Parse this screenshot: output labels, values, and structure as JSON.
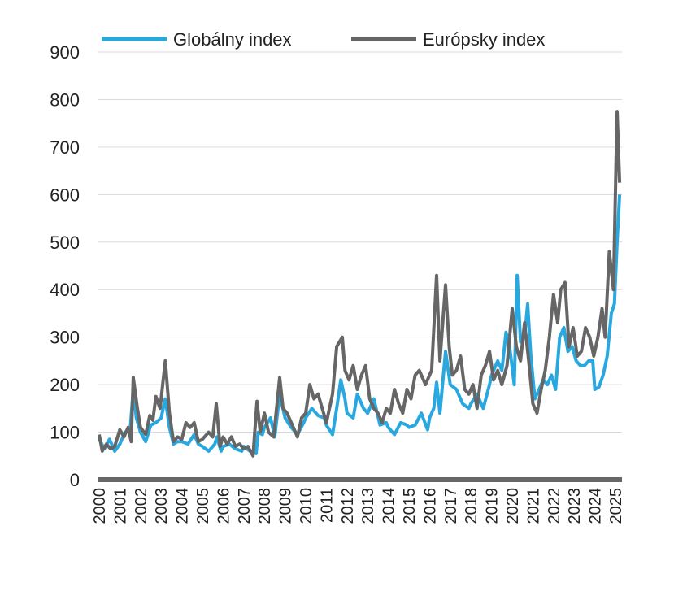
{
  "chart_data": {
    "type": "line",
    "title": "",
    "xlabel": "",
    "ylabel": "",
    "ylim": [
      0,
      900
    ],
    "yticks": [
      0,
      100,
      200,
      300,
      400,
      500,
      600,
      700,
      800,
      900
    ],
    "xlim": [
      2000,
      2025.25
    ],
    "xticks": [
      "2000",
      "2001",
      "2002",
      "2003",
      "2004",
      "2005",
      "2006",
      "2007",
      "2008",
      "2009",
      "2010",
      "2011",
      "2012",
      "2013",
      "2014",
      "2015",
      "2016",
      "2017",
      "2018",
      "2019",
      "2020",
      "2021",
      "2022",
      "2023",
      "2024",
      "2025"
    ],
    "grid": true,
    "legend": "top",
    "series": [
      {
        "name": "Globálny index",
        "color": "#29a8e0",
        "points": [
          [
            2000,
            85
          ],
          [
            2000.25,
            65
          ],
          [
            2000.5,
            85
          ],
          [
            2000.75,
            60
          ],
          [
            2001,
            75
          ],
          [
            2001.25,
            100
          ],
          [
            2001.5,
            105
          ],
          [
            2001.65,
            190
          ],
          [
            2001.8,
            130
          ],
          [
            2002,
            100
          ],
          [
            2002.25,
            80
          ],
          [
            2002.5,
            115
          ],
          [
            2002.75,
            120
          ],
          [
            2003,
            130
          ],
          [
            2003.2,
            170
          ],
          [
            2003.4,
            110
          ],
          [
            2003.6,
            75
          ],
          [
            2003.8,
            80
          ],
          [
            2004,
            80
          ],
          [
            2004.3,
            75
          ],
          [
            2004.6,
            95
          ],
          [
            2004.8,
            75
          ],
          [
            2005,
            70
          ],
          [
            2005.3,
            60
          ],
          [
            2005.6,
            75
          ],
          [
            2005.7,
            90
          ],
          [
            2005.9,
            60
          ],
          [
            2006,
            70
          ],
          [
            2006.3,
            75
          ],
          [
            2006.6,
            65
          ],
          [
            2006.9,
            60
          ],
          [
            2007,
            70
          ],
          [
            2007.3,
            60
          ],
          [
            2007.6,
            55
          ],
          [
            2007.7,
            100
          ],
          [
            2007.9,
            95
          ],
          [
            2008,
            110
          ],
          [
            2008.3,
            130
          ],
          [
            2008.5,
            90
          ],
          [
            2008.74,
            180
          ],
          [
            2009,
            130
          ],
          [
            2009.3,
            110
          ],
          [
            2009.6,
            95
          ],
          [
            2009.9,
            120
          ],
          [
            2010,
            130
          ],
          [
            2010.3,
            150
          ],
          [
            2010.6,
            135
          ],
          [
            2010.9,
            130
          ],
          [
            2011,
            115
          ],
          [
            2011.3,
            95
          ],
          [
            2011.5,
            150
          ],
          [
            2011.7,
            210
          ],
          [
            2011.9,
            170
          ],
          [
            2012,
            140
          ],
          [
            2012.3,
            130
          ],
          [
            2012.5,
            180
          ],
          [
            2012.8,
            150
          ],
          [
            2013,
            140
          ],
          [
            2013.3,
            170
          ],
          [
            2013.6,
            115
          ],
          [
            2013.9,
            120
          ],
          [
            2014,
            110
          ],
          [
            2014.3,
            95
          ],
          [
            2014.6,
            120
          ],
          [
            2014.9,
            115
          ],
          [
            2015,
            110
          ],
          [
            2015.3,
            115
          ],
          [
            2015.6,
            140
          ],
          [
            2015.9,
            105
          ],
          [
            2016,
            130
          ],
          [
            2016.2,
            150
          ],
          [
            2016.34,
            205
          ],
          [
            2016.5,
            140
          ],
          [
            2016.77,
            270
          ],
          [
            2017,
            200
          ],
          [
            2017.3,
            190
          ],
          [
            2017.6,
            160
          ],
          [
            2017.9,
            150
          ],
          [
            2018,
            160
          ],
          [
            2018.3,
            180
          ],
          [
            2018.6,
            150
          ],
          [
            2018.9,
            200
          ],
          [
            2019,
            220
          ],
          [
            2019.3,
            250
          ],
          [
            2019.5,
            230
          ],
          [
            2019.7,
            310
          ],
          [
            2019.9,
            270
          ],
          [
            2020.1,
            200
          ],
          [
            2020.24,
            430
          ],
          [
            2020.4,
            290
          ],
          [
            2020.6,
            300
          ],
          [
            2020.75,
            370
          ],
          [
            2020.9,
            260
          ],
          [
            2021.1,
            170
          ],
          [
            2021.3,
            190
          ],
          [
            2021.5,
            210
          ],
          [
            2021.7,
            200
          ],
          [
            2021.9,
            220
          ],
          [
            2022.1,
            190
          ],
          [
            2022.3,
            300
          ],
          [
            2022.5,
            320
          ],
          [
            2022.7,
            270
          ],
          [
            2022.9,
            280
          ],
          [
            2023.1,
            250
          ],
          [
            2023.3,
            240
          ],
          [
            2023.5,
            240
          ],
          [
            2023.7,
            250
          ],
          [
            2023.9,
            250
          ],
          [
            2024,
            190
          ],
          [
            2024.2,
            195
          ],
          [
            2024.4,
            220
          ],
          [
            2024.6,
            260
          ],
          [
            2024.8,
            350
          ],
          [
            2024.95,
            370
          ],
          [
            2025.08,
            500
          ],
          [
            2025.2,
            600
          ]
        ]
      },
      {
        "name": "Európsky index",
        "color": "#666666",
        "points": [
          [
            2000,
            95
          ],
          [
            2000.15,
            60
          ],
          [
            2000.35,
            75
          ],
          [
            2000.55,
            65
          ],
          [
            2000.75,
            70
          ],
          [
            2001,
            105
          ],
          [
            2001.2,
            90
          ],
          [
            2001.4,
            110
          ],
          [
            2001.55,
            80
          ],
          [
            2001.65,
            215
          ],
          [
            2001.85,
            150
          ],
          [
            2002,
            110
          ],
          [
            2002.25,
            95
          ],
          [
            2002.45,
            135
          ],
          [
            2002.6,
            125
          ],
          [
            2002.75,
            175
          ],
          [
            2002.95,
            150
          ],
          [
            2003.2,
            250
          ],
          [
            2003.4,
            140
          ],
          [
            2003.6,
            80
          ],
          [
            2003.8,
            90
          ],
          [
            2004,
            85
          ],
          [
            2004.2,
            120
          ],
          [
            2004.4,
            110
          ],
          [
            2004.6,
            120
          ],
          [
            2004.8,
            80
          ],
          [
            2005,
            85
          ],
          [
            2005.3,
            100
          ],
          [
            2005.5,
            90
          ],
          [
            2005.67,
            160
          ],
          [
            2005.85,
            70
          ],
          [
            2006,
            90
          ],
          [
            2006.2,
            75
          ],
          [
            2006.4,
            90
          ],
          [
            2006.6,
            70
          ],
          [
            2006.8,
            75
          ],
          [
            2007,
            65
          ],
          [
            2007.2,
            70
          ],
          [
            2007.45,
            50
          ],
          [
            2007.64,
            165
          ],
          [
            2007.8,
            100
          ],
          [
            2008,
            140
          ],
          [
            2008.2,
            100
          ],
          [
            2008.45,
            90
          ],
          [
            2008.74,
            215
          ],
          [
            2008.9,
            150
          ],
          [
            2009.1,
            140
          ],
          [
            2009.4,
            110
          ],
          [
            2009.6,
            90
          ],
          [
            2009.8,
            130
          ],
          [
            2010,
            140
          ],
          [
            2010.2,
            200
          ],
          [
            2010.4,
            170
          ],
          [
            2010.6,
            180
          ],
          [
            2010.8,
            150
          ],
          [
            2011,
            120
          ],
          [
            2011.3,
            180
          ],
          [
            2011.5,
            280
          ],
          [
            2011.77,
            300
          ],
          [
            2011.9,
            230
          ],
          [
            2012.1,
            210
          ],
          [
            2012.3,
            240
          ],
          [
            2012.5,
            190
          ],
          [
            2012.7,
            220
          ],
          [
            2012.9,
            240
          ],
          [
            2013.1,
            170
          ],
          [
            2013.3,
            150
          ],
          [
            2013.5,
            140
          ],
          [
            2013.7,
            120
          ],
          [
            2013.9,
            150
          ],
          [
            2014.1,
            140
          ],
          [
            2014.3,
            190
          ],
          [
            2014.5,
            160
          ],
          [
            2014.7,
            140
          ],
          [
            2014.9,
            190
          ],
          [
            2015.1,
            170
          ],
          [
            2015.3,
            220
          ],
          [
            2015.5,
            230
          ],
          [
            2015.8,
            200
          ],
          [
            2016.1,
            230
          ],
          [
            2016.34,
            430
          ],
          [
            2016.5,
            250
          ],
          [
            2016.77,
            410
          ],
          [
            2016.95,
            280
          ],
          [
            2017.1,
            220
          ],
          [
            2017.3,
            230
          ],
          [
            2017.5,
            260
          ],
          [
            2017.7,
            190
          ],
          [
            2017.9,
            180
          ],
          [
            2018.1,
            200
          ],
          [
            2018.3,
            150
          ],
          [
            2018.5,
            220
          ],
          [
            2018.7,
            240
          ],
          [
            2018.9,
            270
          ],
          [
            2019.1,
            210
          ],
          [
            2019.3,
            230
          ],
          [
            2019.5,
            200
          ],
          [
            2019.75,
            240
          ],
          [
            2020.0,
            360
          ],
          [
            2020.2,
            280
          ],
          [
            2020.4,
            250
          ],
          [
            2020.6,
            330
          ],
          [
            2020.8,
            250
          ],
          [
            2021.0,
            160
          ],
          [
            2021.2,
            140
          ],
          [
            2021.4,
            190
          ],
          [
            2021.6,
            230
          ],
          [
            2021.8,
            300
          ],
          [
            2022.0,
            390
          ],
          [
            2022.2,
            330
          ],
          [
            2022.35,
            400
          ],
          [
            2022.56,
            415
          ],
          [
            2022.75,
            280
          ],
          [
            2022.95,
            320
          ],
          [
            2023.15,
            260
          ],
          [
            2023.35,
            270
          ],
          [
            2023.55,
            320
          ],
          [
            2023.75,
            300
          ],
          [
            2023.95,
            260
          ],
          [
            2024.15,
            300
          ],
          [
            2024.35,
            360
          ],
          [
            2024.5,
            300
          ],
          [
            2024.7,
            480
          ],
          [
            2024.9,
            400
          ],
          [
            2025.08,
            775
          ],
          [
            2025.2,
            625
          ]
        ]
      }
    ]
  }
}
